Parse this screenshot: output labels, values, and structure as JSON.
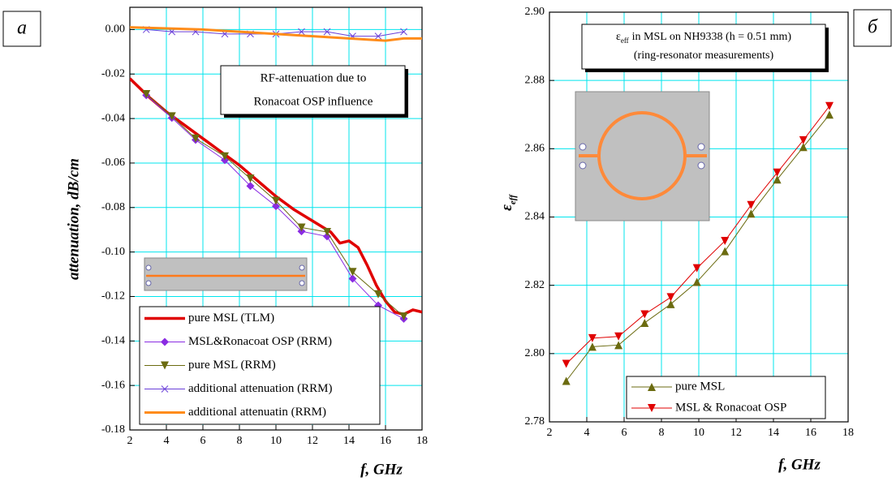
{
  "chart_data": [
    {
      "type": "line",
      "panel_label": "а",
      "xlabel": "f, GHz",
      "ylabel": "attenuation, dB/cm",
      "annotation": [
        "RF-attenuation due to",
        "Ronacoat OSP influence"
      ],
      "xlim": [
        2,
        18
      ],
      "xticks": [
        2,
        4,
        6,
        8,
        10,
        12,
        14,
        16,
        18
      ],
      "ylim": [
        -0.18,
        0.01
      ],
      "yticks": [
        {
          "value": 0,
          "label": "0.00"
        },
        {
          "value": -0.02,
          "label": "-0.02"
        },
        {
          "value": -0.04,
          "label": "-0.04"
        },
        {
          "value": -0.06,
          "label": "-0.06"
        },
        {
          "value": -0.08,
          "label": "-0.08"
        },
        {
          "value": -0.1,
          "label": "-0.10"
        },
        {
          "value": -0.12,
          "label": "-0.12"
        },
        {
          "value": -0.14,
          "label": "-0.14"
        },
        {
          "value": -0.16,
          "label": "-0.16"
        },
        {
          "value": -0.18,
          "label": "-0.18"
        }
      ],
      "grid": true,
      "legend": "lower left",
      "series": [
        {
          "name": "pure MSL (TLM)",
          "color": "#e00000",
          "marker": "none",
          "linewidth": 3.5,
          "x": [
            2,
            3,
            4,
            5,
            6,
            7,
            8,
            9,
            10,
            11,
            12,
            13,
            13.5,
            14,
            14.5,
            15,
            15.5,
            16,
            16.5,
            17,
            17.5,
            18
          ],
          "values": [
            -0.022,
            -0.03,
            -0.037,
            -0.043,
            -0.049,
            -0.055,
            -0.061,
            -0.068,
            -0.075,
            -0.081,
            -0.086,
            -0.091,
            -0.096,
            -0.095,
            -0.098,
            -0.106,
            -0.115,
            -0.122,
            -0.127,
            -0.128,
            -0.126,
            -0.127
          ]
        },
        {
          "name": "MSL&Ronacoat OSP (RRM)",
          "color": "#8a2be2",
          "marker": "diamond",
          "linewidth": 1,
          "x": [
            2.9,
            4.3,
            5.6,
            7.2,
            8.6,
            10.0,
            11.4,
            12.8,
            14.2,
            15.6,
            17.0
          ],
          "values": [
            -0.0295,
            -0.0397,
            -0.0496,
            -0.0587,
            -0.0703,
            -0.0794,
            -0.0907,
            -0.093,
            -0.112,
            -0.124,
            -0.13
          ]
        },
        {
          "name": "pure MSL (RRM)",
          "color": "#6b6b10",
          "marker": "triangle-down",
          "linewidth": 1,
          "x": [
            2.9,
            4.3,
            5.6,
            7.2,
            8.6,
            10.0,
            11.4,
            12.8,
            14.2,
            15.6,
            17.0
          ],
          "values": [
            -0.029,
            -0.039,
            -0.049,
            -0.057,
            -0.067,
            -0.077,
            -0.089,
            -0.091,
            -0.109,
            -0.119,
            -0.129
          ]
        },
        {
          "name": "additional attenuation (RRM)",
          "color": "#6a3fd8",
          "marker": "x",
          "linewidth": 1,
          "x": [
            2.9,
            4.3,
            5.6,
            7.2,
            8.6,
            10.0,
            11.4,
            12.8,
            14.2,
            15.6,
            17.0
          ],
          "values": [
            0.0,
            -0.001,
            -0.001,
            -0.002,
            -0.002,
            -0.002,
            -0.001,
            -0.001,
            -0.003,
            -0.003,
            -0.001
          ]
        },
        {
          "name": "additional attenuatin (RRM)",
          "color": "#ff8c1a",
          "marker": "none",
          "linewidth": 3,
          "x": [
            2,
            4,
            6,
            8,
            10,
            12,
            14,
            16,
            17,
            18
          ],
          "values": [
            0.001,
            0.0005,
            0.0,
            -0.001,
            -0.002,
            -0.003,
            -0.004,
            -0.005,
            -0.004,
            -0.004
          ]
        }
      ]
    },
    {
      "type": "line",
      "panel_label": "б",
      "xlabel": "f, GHz",
      "ylabel": "ε",
      "ylabel_sub": "eff",
      "annotation_symbol": "ε",
      "annotation_sub": "eff",
      "annotation": [
        "in MSL on NH9338 (h = 0.51 mm)",
        "(ring-resonator measurements)"
      ],
      "xlim": [
        2,
        18
      ],
      "xticks": [
        2,
        4,
        6,
        8,
        10,
        12,
        14,
        16,
        18
      ],
      "ylim": [
        2.78,
        2.9
      ],
      "yticks": [
        {
          "value": 2.78,
          "label": "2.78"
        },
        {
          "value": 2.8,
          "label": "2.80"
        },
        {
          "value": 2.82,
          "label": "2.82"
        },
        {
          "value": 2.84,
          "label": "2.84"
        },
        {
          "value": 2.86,
          "label": "2.86"
        },
        {
          "value": 2.88,
          "label": "2.88"
        },
        {
          "value": 2.9,
          "label": "2.90"
        }
      ],
      "grid": true,
      "legend": "lower right",
      "series": [
        {
          "name": "pure MSL",
          "color": "#6b6b10",
          "marker": "triangle-up",
          "linewidth": 1,
          "x": [
            2.9,
            4.3,
            5.7,
            7.1,
            8.5,
            9.9,
            11.4,
            12.8,
            14.2,
            15.6,
            17.0
          ],
          "values": [
            2.792,
            2.802,
            2.8025,
            2.809,
            2.8145,
            2.821,
            2.83,
            2.841,
            2.851,
            2.8605,
            2.87
          ]
        },
        {
          "name": "MSL & Ronacoat OSP",
          "color": "#e00000",
          "marker": "triangle-down",
          "linewidth": 1,
          "x": [
            2.9,
            4.3,
            5.7,
            7.1,
            8.5,
            9.9,
            11.4,
            12.8,
            14.2,
            15.6,
            17.0
          ],
          "values": [
            2.797,
            2.8045,
            2.805,
            2.8115,
            2.8165,
            2.825,
            2.833,
            2.8435,
            2.853,
            2.8625,
            2.8725
          ]
        }
      ]
    }
  ]
}
